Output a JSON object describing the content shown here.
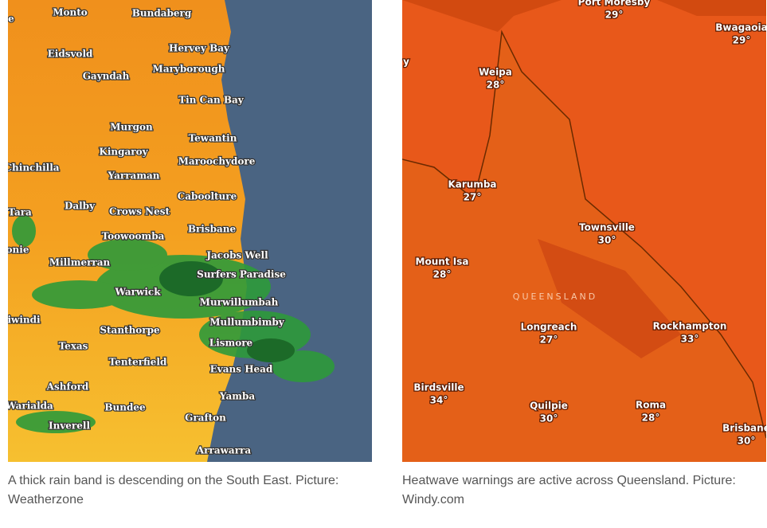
{
  "left_map": {
    "labels": [
      "e",
      "Monto",
      "Bundaberg",
      "Eidsvold",
      "Hervey Bay",
      "Gayndah",
      "Maryborough",
      "Tin Can Bay",
      "Murgon",
      "Tewantin",
      "Kingaroy",
      "Maroochydore",
      "Chinchilla",
      "Yarraman",
      "Caboolture",
      "Tara",
      "Dalby",
      "Crows Nest",
      "Brisbane",
      "Toowoomba",
      "onie",
      "Jacobs Well",
      "Millmerran",
      "Surfers Paradise",
      "Warwick",
      "Murwillumbah",
      "iwindi",
      "Mullumbimby",
      "Stanthorpe",
      "Lismore",
      "Texas",
      "Tenterfield",
      "Evans Head",
      "Ashford",
      "Yamba",
      "Warialda",
      "Bundee",
      "Inverell",
      "Grafton",
      "Arrawarra"
    ],
    "caption": "A thick rain band is descending on the South East. Picture: Weatherzone"
  },
  "right_map": {
    "places": [
      {
        "name": "Port Moresby",
        "temp": "29°"
      },
      {
        "name": "Bwagaoia",
        "temp": "29°"
      },
      {
        "name": "Weipa",
        "temp": "28°"
      },
      {
        "name": "Karumba",
        "temp": "27°"
      },
      {
        "name": "Townsville",
        "temp": "30°"
      },
      {
        "name": "Mount Isa",
        "temp": "28°"
      },
      {
        "name": "Longreach",
        "temp": "27°"
      },
      {
        "name": "Rockhampton",
        "temp": "33°"
      },
      {
        "name": "Birdsville",
        "temp": "34°"
      },
      {
        "name": "Quilpie",
        "temp": "30°"
      },
      {
        "name": "Roma",
        "temp": "28°"
      },
      {
        "name": "Brisbane",
        "temp": "30°"
      }
    ],
    "partial": "y",
    "region": "QUEENSLAND",
    "caption": "Heatwave warnings are active across Queensland. Picture: Windy.com"
  }
}
